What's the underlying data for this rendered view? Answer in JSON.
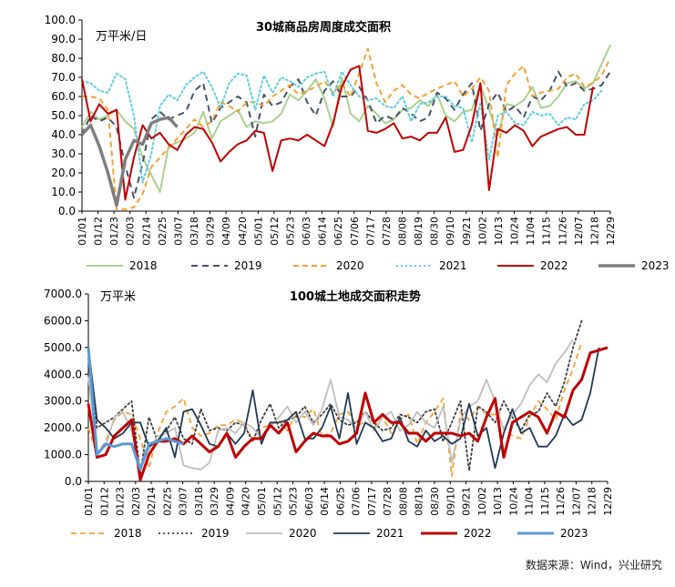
{
  "source": "数据来源：Wind，兴业研究",
  "chart_data": [
    {
      "type": "line",
      "title": "30城商品房周度成交面积",
      "unit": "万平米/日",
      "ylim": [
        0,
        100
      ],
      "ytick_labels": [
        "0.0",
        "10.0",
        "20.0",
        "30.0",
        "40.0",
        "50.0",
        "60.0",
        "70.0",
        "80.0",
        "90.0",
        "100.0"
      ],
      "x_labels": [
        "01/01",
        "01/12",
        "01/23",
        "02/03",
        "02/14",
        "02/25",
        "03/07",
        "03/18",
        "03/29",
        "04/09",
        "04/20",
        "05/01",
        "05/12",
        "05/23",
        "06/03",
        "06/14",
        "06/25",
        "07/06",
        "07/17",
        "07/28",
        "08/08",
        "08/19",
        "08/30",
        "09/10",
        "09/21",
        "10/02",
        "10/13",
        "10/24",
        "11/04",
        "11/15",
        "11/26",
        "12/07",
        "12/18",
        "12/29"
      ],
      "legend": "bottom",
      "series": [
        {
          "name": "2018",
          "color": "#a9d18e",
          "dash": "solid",
          "width": 2,
          "values": [
            44,
            52,
            48,
            50,
            53,
            47,
            43,
            28,
            19,
            10,
            34,
            36,
            38,
            41,
            52,
            38,
            47,
            50,
            53,
            44,
            47,
            46,
            47,
            51,
            61,
            58,
            63,
            69,
            59,
            44,
            70,
            51,
            47,
            55,
            51,
            46,
            48,
            53,
            54,
            58,
            55,
            61,
            50,
            47,
            52,
            53,
            66,
            53,
            40,
            56,
            55,
            58,
            65,
            54,
            55,
            60,
            67,
            68,
            64,
            67,
            77,
            87
          ]
        },
        {
          "name": "2019",
          "color": "#44546a",
          "dash": "7,5",
          "width": 2,
          "values": [
            40,
            50,
            47,
            49,
            44,
            24,
            7,
            25,
            48,
            52,
            48,
            50,
            52,
            63,
            67,
            46,
            54,
            57,
            60,
            57,
            39,
            61,
            55,
            57,
            65,
            69,
            57,
            50,
            63,
            68,
            60,
            60,
            65,
            58,
            46,
            50,
            48,
            54,
            51,
            47,
            49,
            62,
            59,
            53,
            61,
            67,
            42,
            56,
            62,
            52,
            55,
            49,
            60,
            58,
            63,
            73,
            65,
            67,
            63,
            64,
            66,
            73
          ]
        },
        {
          "name": "2020",
          "color": "#f6a133",
          "dash": "6,4",
          "width": 2,
          "values": [
            60,
            60,
            59,
            53,
            1,
            1,
            2,
            9,
            23,
            28,
            33,
            38,
            43,
            48,
            44,
            47,
            57,
            55,
            52,
            57,
            57,
            55,
            60,
            63,
            66,
            61,
            63,
            65,
            68,
            62,
            67,
            60,
            72,
            85,
            67,
            57,
            63,
            66,
            61,
            59,
            62,
            64,
            66,
            68,
            60,
            64,
            70,
            63,
            28,
            66,
            72,
            76,
            60,
            62,
            63,
            64,
            70,
            72,
            65,
            67,
            71,
            80
          ]
        },
        {
          "name": "2021",
          "color": "#5fcfe0",
          "dash": "2,3",
          "width": 2,
          "values": [
            68,
            67,
            63,
            62,
            72,
            69,
            50,
            15,
            30,
            55,
            61,
            58,
            66,
            70,
            73,
            65,
            54,
            67,
            72,
            71,
            53,
            71,
            62,
            70,
            68,
            65,
            70,
            72,
            73,
            60,
            73,
            66,
            60,
            58,
            59,
            55,
            54,
            60,
            47,
            56,
            57,
            60,
            60,
            55,
            54,
            36,
            57,
            27,
            50,
            52,
            46,
            45,
            52,
            50,
            51,
            45,
            49,
            48,
            56,
            58,
            63
          ]
        },
        {
          "name": "2022",
          "color": "#c00000",
          "dash": "solid",
          "width": 2,
          "values": [
            69,
            47,
            56,
            51,
            53,
            6,
            28,
            45,
            38,
            41,
            35,
            32,
            40,
            44,
            43,
            36,
            26,
            31,
            35,
            37,
            42,
            41,
            21,
            37,
            38,
            37,
            40,
            37,
            34,
            46,
            65,
            74,
            76,
            42,
            41,
            43,
            46,
            38,
            39,
            37,
            41,
            41,
            49,
            31,
            32,
            45,
            67,
            11,
            43,
            41,
            45,
            42,
            34,
            39,
            41,
            43,
            44,
            40,
            40,
            65
          ]
        },
        {
          "name": "2023",
          "color": "#7f7f7f",
          "dash": "solid",
          "width": 3.5,
          "values": [
            40,
            45,
            34,
            20,
            3,
            27,
            37,
            35,
            46,
            48,
            49,
            44
          ]
        }
      ]
    },
    {
      "type": "line",
      "title": "100城土地成交面积走势",
      "unit": "万平米",
      "ylim": [
        0,
        7000
      ],
      "ytick_labels": [
        "0.0",
        "1000.0",
        "2000.0",
        "3000.0",
        "4000.0",
        "5000.0",
        "6000.0",
        "7000.0"
      ],
      "x_labels": [
        "01/01",
        "01/12",
        "01/23",
        "02/03",
        "02/14",
        "02/25",
        "03/07",
        "03/18",
        "03/29",
        "04/09",
        "04/20",
        "05/01",
        "05/12",
        "05/23",
        "06/03",
        "06/14",
        "06/25",
        "07/06",
        "07/17",
        "07/28",
        "08/08",
        "08/19",
        "08/30",
        "09/10",
        "09/21",
        "10/02",
        "10/13",
        "10/24",
        "11/04",
        "11/15",
        "11/26",
        "12/07",
        "12/18",
        "12/29"
      ],
      "legend": "bottom",
      "series": [
        {
          "name": "2018",
          "color": "#f6a133",
          "dash": "6,4",
          "width": 1.8,
          "values": [
            2000,
            1000,
            1500,
            2300,
            2600,
            2500,
            1600,
            500,
            1800,
            2600,
            2800,
            3100,
            2000,
            1700,
            1800,
            2100,
            2100,
            2300,
            2200,
            1500,
            2000,
            2100,
            2300,
            1900,
            2500,
            2400,
            2700,
            1700,
            1800,
            2500,
            2600,
            2100,
            2200,
            2000,
            2400,
            1800,
            2300,
            2500,
            1400,
            2200,
            2600,
            3100,
            200,
            2600,
            2300,
            2800,
            2500,
            2500,
            2000,
            1700,
            1600,
            2400,
            3000,
            2700,
            2300,
            3400,
            4200,
            5200
          ]
        },
        {
          "name": "2019",
          "color": "#404040",
          "dash": "2,3",
          "width": 1.8,
          "values": [
            4600,
            2000,
            2200,
            2400,
            2700,
            3000,
            300,
            2400,
            1500,
            1900,
            2400,
            1600,
            1400,
            2700,
            1900,
            2000,
            1900,
            2200,
            2100,
            1500,
            2300,
            2900,
            2000,
            2300,
            2400,
            2800,
            2200,
            2500,
            2900,
            2300,
            2100,
            2200,
            2600,
            2200,
            1900,
            2000,
            2500,
            2400,
            2200,
            2600,
            2700,
            1500,
            2200,
            3000,
            400,
            2800,
            2600,
            2200,
            3000,
            2400,
            1900,
            2500,
            2600,
            3300,
            2800,
            3700,
            5000,
            6000
          ]
        },
        {
          "name": "2020",
          "color": "#bfbfbf",
          "dash": "solid",
          "width": 1.8,
          "values": [
            3900,
            1100,
            1300,
            2400,
            2600,
            1900,
            500,
            1200,
            1700,
            1800,
            2000,
            600,
            500,
            450,
            700,
            1900,
            2000,
            1800,
            2200,
            2000,
            1600,
            2000,
            2400,
            2800,
            2200,
            2600,
            2100,
            2700,
            3800,
            2400,
            2300,
            2000,
            2600,
            1900,
            2400,
            2600,
            1900,
            2100,
            2600,
            2200,
            2000,
            2800,
            700,
            2300,
            2800,
            3000,
            3800,
            3000,
            1900,
            2500,
            2900,
            3600,
            4000,
            3700,
            4400,
            4800,
            5300
          ]
        },
        {
          "name": "2021",
          "color": "#1f3b57",
          "dash": "solid",
          "width": 1.8,
          "values": [
            5000,
            2300,
            2000,
            1600,
            1800,
            2200,
            2200,
            1300,
            1500,
            2000,
            900,
            2600,
            2700,
            2100,
            1400,
            1300,
            1800,
            1400,
            1800,
            3400,
            1400,
            2200,
            2200,
            2300,
            2600,
            1600,
            1600,
            2000,
            2800,
            1600,
            3300,
            1400,
            2200,
            2000,
            1500,
            1600,
            2400,
            1500,
            1300,
            1900,
            1500,
            1700,
            1400,
            1600,
            2900,
            1700,
            2000,
            500,
            1800,
            2700,
            1800,
            2000,
            1300,
            1300,
            1700,
            2500,
            2100,
            2300,
            3300,
            5000
          ]
        },
        {
          "name": "2022",
          "color": "#c00000",
          "dash": "solid",
          "width": 3,
          "values": [
            2900,
            900,
            1000,
            1700,
            2000,
            2300,
            50,
            1000,
            1500,
            1500,
            1600,
            1400,
            1700,
            1400,
            1100,
            1300,
            1800,
            900,
            1300,
            1600,
            1600,
            2100,
            1800,
            2200,
            1100,
            1500,
            1800,
            1700,
            1700,
            1400,
            1500,
            1800,
            3300,
            2200,
            2500,
            2200,
            2200,
            1800,
            1800,
            1500,
            1800,
            1800,
            1800,
            1700,
            1800,
            1500,
            2400,
            3100,
            900,
            2200,
            2400,
            2600,
            2400,
            1800,
            2600,
            2400,
            3400,
            3800,
            4800,
            4900,
            5000
          ]
        },
        {
          "name": "2023",
          "color": "#5b9bd5",
          "dash": "solid",
          "width": 3,
          "values": [
            5000,
            1000,
            1400,
            1300,
            1400,
            1400,
            450,
            1400,
            1500,
            1600,
            1500,
            1400
          ]
        }
      ]
    }
  ]
}
